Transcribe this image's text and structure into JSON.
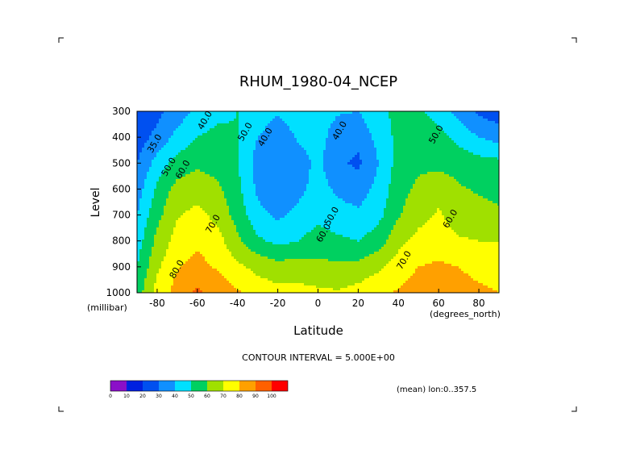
{
  "chart_data": {
    "type": "heatmap",
    "title": "RHUM_1980-04_NCEP",
    "xlabel": "Latitude",
    "ylabel": "Level",
    "x_units": "(degrees_north)",
    "y_units": "(millibar)",
    "xlim": [
      -90,
      90
    ],
    "ylim": [
      1000,
      300
    ],
    "x_ticks": [
      "-80",
      "-60",
      "-40",
      "-20",
      "0",
      "20",
      "40",
      "60",
      "80"
    ],
    "y_ticks": [
      "300",
      "400",
      "500",
      "600",
      "700",
      "800",
      "900",
      "1000"
    ],
    "contour_interval_text": "CONTOUR INTERVAL = 5.000E+00",
    "mean_text": "(mean) lon:0..357.5",
    "contour_labels": [
      {
        "text": "40.0",
        "x": -55,
        "y": 340
      },
      {
        "text": "50.0",
        "x": -35,
        "y": 385
      },
      {
        "text": "40.0",
        "x": -25,
        "y": 405
      },
      {
        "text": "40.0",
        "x": 12,
        "y": 380
      },
      {
        "text": "50.0",
        "x": 60,
        "y": 395
      },
      {
        "text": "35.0",
        "x": -80,
        "y": 430
      },
      {
        "text": "50.0",
        "x": -73,
        "y": 520
      },
      {
        "text": "60.0",
        "x": -66,
        "y": 530
      },
      {
        "text": "70.0",
        "x": -51,
        "y": 740
      },
      {
        "text": "50.0",
        "x": 8,
        "y": 710
      },
      {
        "text": "60.0",
        "x": 4,
        "y": 775
      },
      {
        "text": "60.0",
        "x": 67,
        "y": 720
      },
      {
        "text": "70.0",
        "x": 44,
        "y": 880
      },
      {
        "text": "80.0",
        "x": -69,
        "y": 915
      }
    ],
    "colorbar": {
      "levels": [
        "0",
        "10",
        "20",
        "30",
        "40",
        "50",
        "60",
        "70",
        "80",
        "90",
        "100"
      ],
      "colors": [
        "#8b10c8",
        "#0020e0",
        "#0050f0",
        "#1090ff",
        "#00e0ff",
        "#00d060",
        "#a0e000",
        "#ffff00",
        "#ffa000",
        "#ff6000",
        "#ff0000"
      ]
    },
    "lat_grid": [
      -90,
      -80,
      -70,
      -60,
      -50,
      -40,
      -30,
      -20,
      -10,
      0,
      10,
      20,
      30,
      40,
      50,
      60,
      70,
      80,
      90
    ],
    "level_grid": [
      300,
      400,
      500,
      600,
      700,
      800,
      900,
      1000
    ],
    "values": [
      [
        20,
        27,
        35,
        42,
        47,
        50,
        45,
        41,
        44,
        44,
        41,
        40,
        47,
        53,
        52,
        45,
        36,
        28,
        24
      ],
      [
        25,
        33,
        43,
        50,
        53,
        51,
        40,
        35,
        41,
        44,
        35,
        33,
        43,
        53,
        56,
        54,
        47,
        40,
        36
      ],
      [
        30,
        44,
        54,
        58,
        56,
        50,
        36,
        30,
        36,
        42,
        32,
        28,
        40,
        54,
        58,
        57,
        56,
        54,
        53
      ],
      [
        35,
        52,
        64,
        66,
        62,
        53,
        38,
        32,
        37,
        44,
        38,
        35,
        43,
        56,
        62,
        67,
        61,
        59,
        57
      ],
      [
        40,
        57,
        69,
        73,
        67,
        56,
        43,
        38,
        43,
        48,
        44,
        42,
        47,
        59,
        67,
        71,
        66,
        63,
        62
      ],
      [
        45,
        63,
        74,
        78,
        74,
        62,
        52,
        47,
        50,
        54,
        52,
        50,
        55,
        67,
        73,
        74,
        71,
        70,
        70
      ],
      [
        50,
        68,
        79,
        83,
        79,
        72,
        67,
        64,
        65,
        63,
        62,
        63,
        68,
        75,
        80,
        82,
        80,
        77,
        76
      ],
      [
        55,
        74,
        84,
        92,
        86,
        81,
        76,
        73,
        73,
        72,
        71,
        74,
        78,
        81,
        85,
        86,
        84,
        82,
        80
      ]
    ]
  }
}
